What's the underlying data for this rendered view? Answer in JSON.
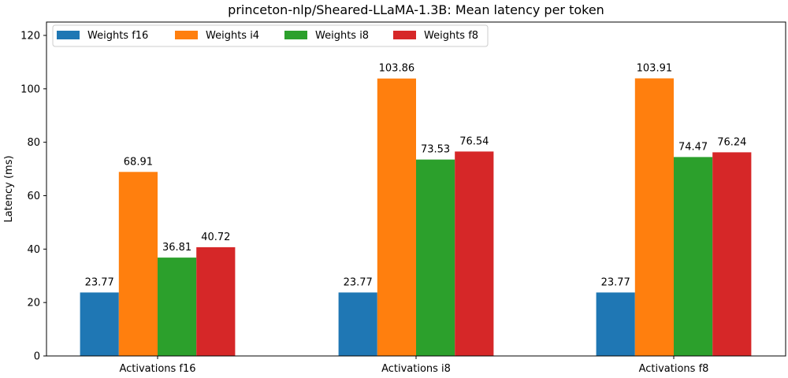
{
  "chart_data": {
    "type": "bar",
    "title": "princeton-nlp/Sheared-LLaMA-1.3B: Mean latency per token",
    "xlabel": "",
    "ylabel": "Latency (ms)",
    "ylim": [
      0,
      125
    ],
    "yticks": [
      0,
      20,
      40,
      60,
      80,
      100,
      120
    ],
    "categories": [
      "Activations f16",
      "Activations i8",
      "Activations f8"
    ],
    "series": [
      {
        "name": "Weights f16",
        "color": "#1f77b4",
        "values": [
          23.77,
          23.77,
          23.77
        ]
      },
      {
        "name": "Weights i4",
        "color": "#ff7f0e",
        "values": [
          68.91,
          103.86,
          103.91
        ]
      },
      {
        "name": "Weights i8",
        "color": "#2ca02c",
        "values": [
          36.81,
          73.53,
          74.47
        ]
      },
      {
        "name": "Weights f8",
        "color": "#d62728",
        "values": [
          40.72,
          76.54,
          76.24
        ]
      }
    ],
    "legend_position": "top-left",
    "grid": false
  }
}
